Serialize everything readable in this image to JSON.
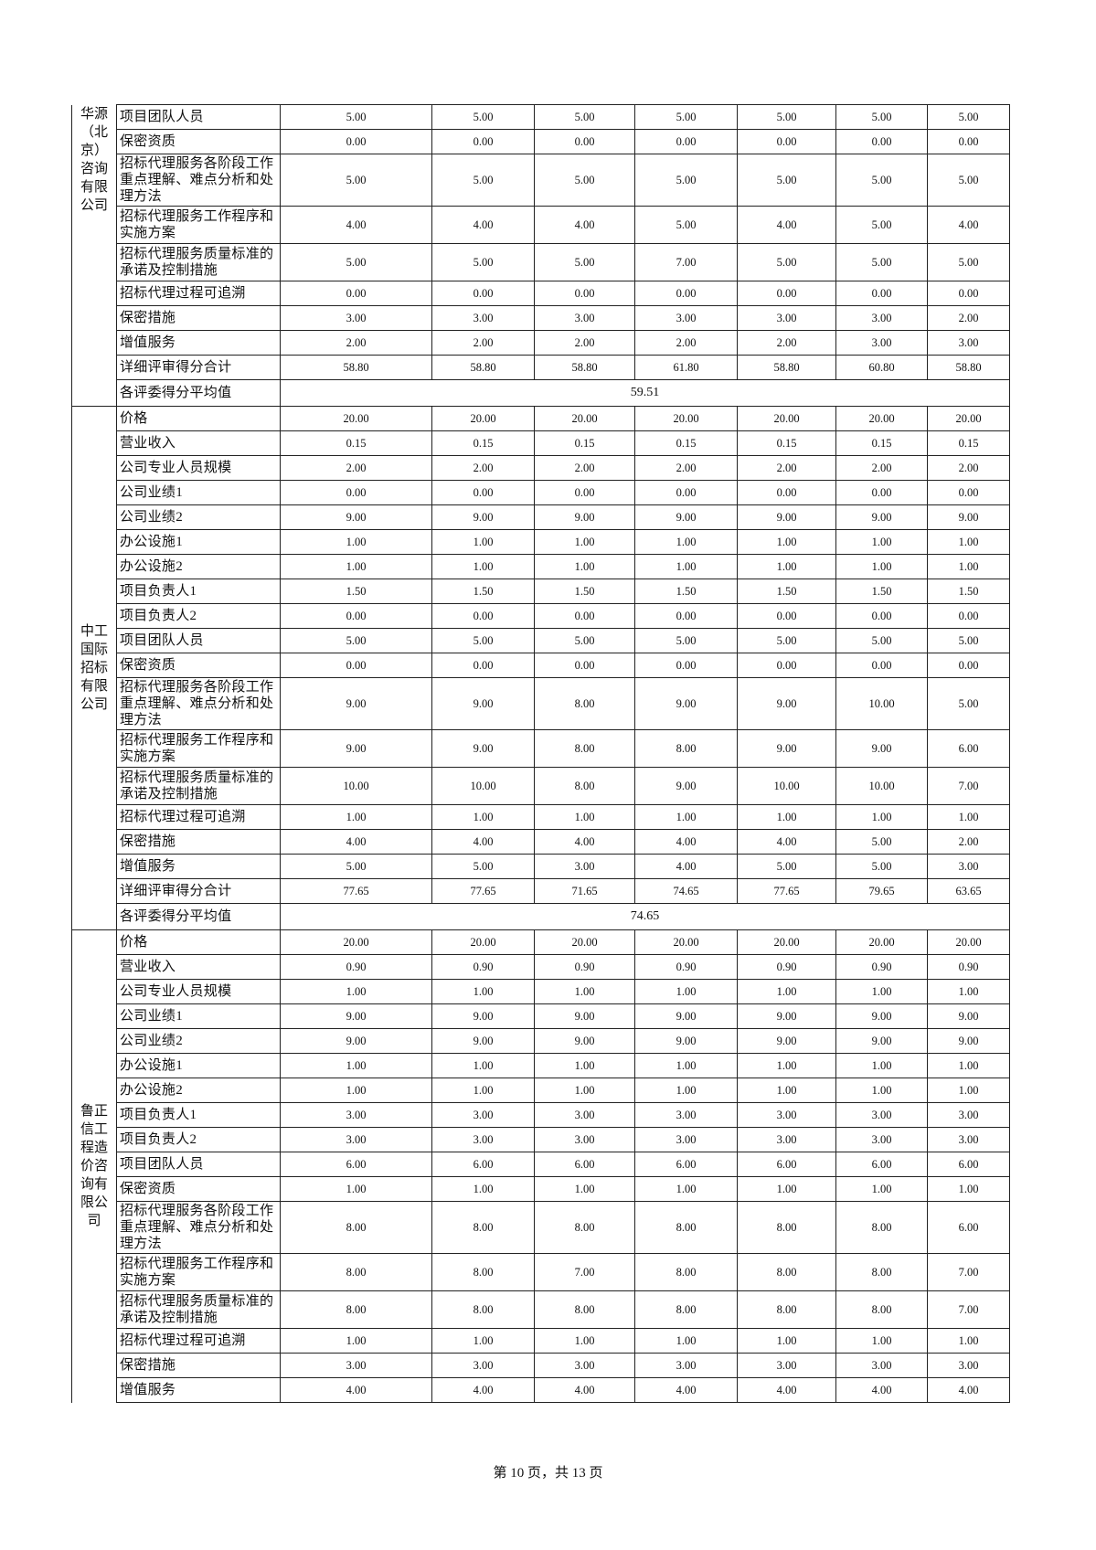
{
  "sections": [
    {
      "company": "华源（北京）咨询有限公司",
      "rows": [
        {
          "label": "项目团队人员",
          "scores": [
            "5.00",
            "5.00",
            "5.00",
            "5.00",
            "5.00",
            "5.00",
            "5.00"
          ]
        },
        {
          "label": "保密资质",
          "scores": [
            "0.00",
            "0.00",
            "0.00",
            "0.00",
            "0.00",
            "0.00",
            "0.00"
          ]
        },
        {
          "label": "招标代理服务各阶段工作重点理解、难点分析和处理方法",
          "scores": [
            "5.00",
            "5.00",
            "5.00",
            "5.00",
            "5.00",
            "5.00",
            "5.00"
          ]
        },
        {
          "label": "招标代理服务工作程序和实施方案",
          "scores": [
            "4.00",
            "4.00",
            "4.00",
            "5.00",
            "4.00",
            "5.00",
            "4.00"
          ]
        },
        {
          "label": "招标代理服务质量标准的承诺及控制措施",
          "scores": [
            "5.00",
            "5.00",
            "5.00",
            "7.00",
            "5.00",
            "5.00",
            "5.00"
          ]
        },
        {
          "label": "招标代理过程可追溯",
          "scores": [
            "0.00",
            "0.00",
            "0.00",
            "0.00",
            "0.00",
            "0.00",
            "0.00"
          ]
        },
        {
          "label": "保密措施",
          "scores": [
            "3.00",
            "3.00",
            "3.00",
            "3.00",
            "3.00",
            "3.00",
            "2.00"
          ]
        },
        {
          "label": "增值服务",
          "scores": [
            "2.00",
            "2.00",
            "2.00",
            "2.00",
            "2.00",
            "3.00",
            "3.00"
          ]
        },
        {
          "label": "详细评审得分合计",
          "scores": [
            "58.80",
            "58.80",
            "58.80",
            "61.80",
            "58.80",
            "60.80",
            "58.80"
          ]
        }
      ],
      "average_label": "各评委得分平均值",
      "average": "59.51"
    },
    {
      "company": "中工国际招标有限公司",
      "rows": [
        {
          "label": "价格",
          "scores": [
            "20.00",
            "20.00",
            "20.00",
            "20.00",
            "20.00",
            "20.00",
            "20.00"
          ]
        },
        {
          "label": "营业收入",
          "scores": [
            "0.15",
            "0.15",
            "0.15",
            "0.15",
            "0.15",
            "0.15",
            "0.15"
          ]
        },
        {
          "label": "公司专业人员规模",
          "scores": [
            "2.00",
            "2.00",
            "2.00",
            "2.00",
            "2.00",
            "2.00",
            "2.00"
          ]
        },
        {
          "label": "公司业绩1",
          "scores": [
            "0.00",
            "0.00",
            "0.00",
            "0.00",
            "0.00",
            "0.00",
            "0.00"
          ]
        },
        {
          "label": "公司业绩2",
          "scores": [
            "9.00",
            "9.00",
            "9.00",
            "9.00",
            "9.00",
            "9.00",
            "9.00"
          ]
        },
        {
          "label": "办公设施1",
          "scores": [
            "1.00",
            "1.00",
            "1.00",
            "1.00",
            "1.00",
            "1.00",
            "1.00"
          ]
        },
        {
          "label": "办公设施2",
          "scores": [
            "1.00",
            "1.00",
            "1.00",
            "1.00",
            "1.00",
            "1.00",
            "1.00"
          ]
        },
        {
          "label": "项目负责人1",
          "scores": [
            "1.50",
            "1.50",
            "1.50",
            "1.50",
            "1.50",
            "1.50",
            "1.50"
          ]
        },
        {
          "label": "项目负责人2",
          "scores": [
            "0.00",
            "0.00",
            "0.00",
            "0.00",
            "0.00",
            "0.00",
            "0.00"
          ]
        },
        {
          "label": "项目团队人员",
          "scores": [
            "5.00",
            "5.00",
            "5.00",
            "5.00",
            "5.00",
            "5.00",
            "5.00"
          ]
        },
        {
          "label": "保密资质",
          "scores": [
            "0.00",
            "0.00",
            "0.00",
            "0.00",
            "0.00",
            "0.00",
            "0.00"
          ]
        },
        {
          "label": "招标代理服务各阶段工作重点理解、难点分析和处理方法",
          "scores": [
            "9.00",
            "9.00",
            "8.00",
            "9.00",
            "9.00",
            "10.00",
            "5.00"
          ]
        },
        {
          "label": "招标代理服务工作程序和实施方案",
          "scores": [
            "9.00",
            "9.00",
            "8.00",
            "8.00",
            "9.00",
            "9.00",
            "6.00"
          ]
        },
        {
          "label": "招标代理服务质量标准的承诺及控制措施",
          "scores": [
            "10.00",
            "10.00",
            "8.00",
            "9.00",
            "10.00",
            "10.00",
            "7.00"
          ]
        },
        {
          "label": "招标代理过程可追溯",
          "scores": [
            "1.00",
            "1.00",
            "1.00",
            "1.00",
            "1.00",
            "1.00",
            "1.00"
          ]
        },
        {
          "label": "保密措施",
          "scores": [
            "4.00",
            "4.00",
            "4.00",
            "4.00",
            "4.00",
            "5.00",
            "2.00"
          ]
        },
        {
          "label": "增值服务",
          "scores": [
            "5.00",
            "5.00",
            "3.00",
            "4.00",
            "5.00",
            "5.00",
            "3.00"
          ]
        },
        {
          "label": "详细评审得分合计",
          "scores": [
            "77.65",
            "77.65",
            "71.65",
            "74.65",
            "77.65",
            "79.65",
            "63.65"
          ]
        }
      ],
      "average_label": "各评委得分平均值",
      "average": "74.65"
    },
    {
      "company": "鲁正信工程造价咨询有限公司",
      "rows": [
        {
          "label": "价格",
          "scores": [
            "20.00",
            "20.00",
            "20.00",
            "20.00",
            "20.00",
            "20.00",
            "20.00"
          ]
        },
        {
          "label": "营业收入",
          "scores": [
            "0.90",
            "0.90",
            "0.90",
            "0.90",
            "0.90",
            "0.90",
            "0.90"
          ]
        },
        {
          "label": "公司专业人员规模",
          "scores": [
            "1.00",
            "1.00",
            "1.00",
            "1.00",
            "1.00",
            "1.00",
            "1.00"
          ]
        },
        {
          "label": "公司业绩1",
          "scores": [
            "9.00",
            "9.00",
            "9.00",
            "9.00",
            "9.00",
            "9.00",
            "9.00"
          ]
        },
        {
          "label": "公司业绩2",
          "scores": [
            "9.00",
            "9.00",
            "9.00",
            "9.00",
            "9.00",
            "9.00",
            "9.00"
          ]
        },
        {
          "label": "办公设施1",
          "scores": [
            "1.00",
            "1.00",
            "1.00",
            "1.00",
            "1.00",
            "1.00",
            "1.00"
          ]
        },
        {
          "label": "办公设施2",
          "scores": [
            "1.00",
            "1.00",
            "1.00",
            "1.00",
            "1.00",
            "1.00",
            "1.00"
          ]
        },
        {
          "label": "项目负责人1",
          "scores": [
            "3.00",
            "3.00",
            "3.00",
            "3.00",
            "3.00",
            "3.00",
            "3.00"
          ]
        },
        {
          "label": "项目负责人2",
          "scores": [
            "3.00",
            "3.00",
            "3.00",
            "3.00",
            "3.00",
            "3.00",
            "3.00"
          ]
        },
        {
          "label": "项目团队人员",
          "scores": [
            "6.00",
            "6.00",
            "6.00",
            "6.00",
            "6.00",
            "6.00",
            "6.00"
          ]
        },
        {
          "label": "保密资质",
          "scores": [
            "1.00",
            "1.00",
            "1.00",
            "1.00",
            "1.00",
            "1.00",
            "1.00"
          ]
        },
        {
          "label": "招标代理服务各阶段工作重点理解、难点分析和处理方法",
          "scores": [
            "8.00",
            "8.00",
            "8.00",
            "8.00",
            "8.00",
            "8.00",
            "6.00"
          ]
        },
        {
          "label": "招标代理服务工作程序和实施方案",
          "scores": [
            "8.00",
            "8.00",
            "7.00",
            "8.00",
            "8.00",
            "8.00",
            "7.00"
          ]
        },
        {
          "label": "招标代理服务质量标准的承诺及控制措施",
          "scores": [
            "8.00",
            "8.00",
            "8.00",
            "8.00",
            "8.00",
            "8.00",
            "7.00"
          ]
        },
        {
          "label": "招标代理过程可追溯",
          "scores": [
            "1.00",
            "1.00",
            "1.00",
            "1.00",
            "1.00",
            "1.00",
            "1.00"
          ]
        },
        {
          "label": "保密措施",
          "scores": [
            "3.00",
            "3.00",
            "3.00",
            "3.00",
            "3.00",
            "3.00",
            "3.00"
          ]
        },
        {
          "label": "增值服务",
          "scores": [
            "4.00",
            "4.00",
            "4.00",
            "4.00",
            "4.00",
            "4.00",
            "4.00"
          ]
        }
      ]
    }
  ],
  "footer": {
    "page_info": "第 10 页，共 13 页"
  }
}
